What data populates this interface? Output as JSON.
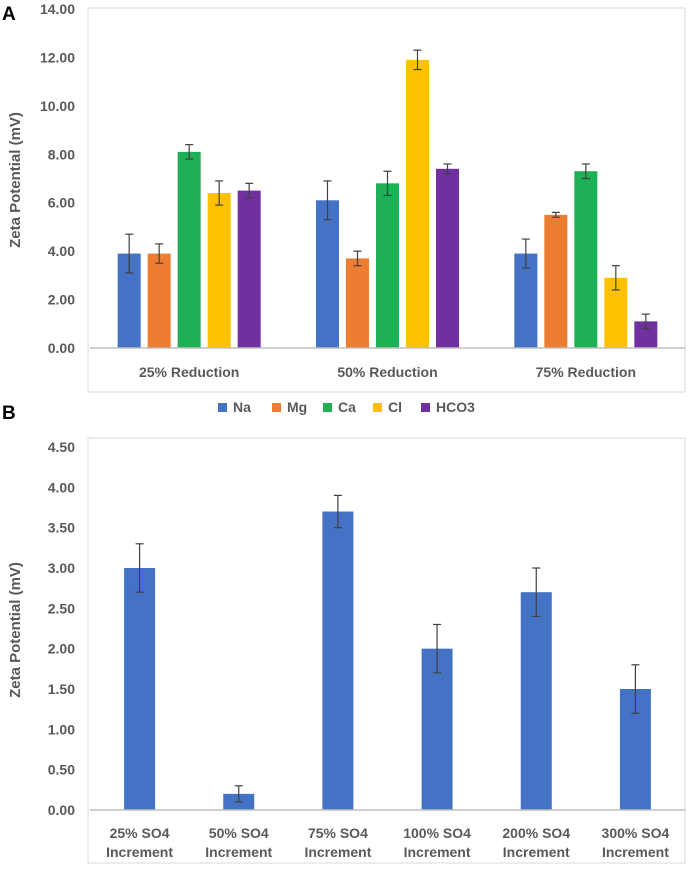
{
  "chart_data": [
    {
      "panel_label": "A",
      "type": "bar",
      "ylabel": "Zeta Potential (mV)",
      "ylim": [
        0,
        14
      ],
      "yticks": [
        "0.00",
        "2.00",
        "4.00",
        "6.00",
        "8.00",
        "10.00",
        "12.00",
        "14.00"
      ],
      "categories": [
        "25% Reduction",
        "50% Reduction",
        "75% Reduction"
      ],
      "series": [
        {
          "name": "Na",
          "color": "#4472c4",
          "values": [
            3.9,
            6.1,
            3.9
          ],
          "errors": [
            0.8,
            0.8,
            0.6
          ]
        },
        {
          "name": "Mg",
          "color": "#ed7d31",
          "values": [
            3.9,
            3.7,
            5.5
          ],
          "errors": [
            0.4,
            0.3,
            0.1
          ]
        },
        {
          "name": "Ca",
          "color": "#1db055",
          "values": [
            8.1,
            6.8,
            7.3
          ],
          "errors": [
            0.3,
            0.5,
            0.3
          ]
        },
        {
          "name": "Cl",
          "color": "#ffc000",
          "values": [
            6.4,
            11.9,
            2.9
          ],
          "errors": [
            0.5,
            0.4,
            0.5
          ]
        },
        {
          "name": "HCO3",
          "color": "#7030a0",
          "values": [
            6.5,
            7.4,
            1.1
          ],
          "errors": [
            0.3,
            0.2,
            0.3
          ]
        }
      ],
      "legend": [
        "Na",
        "Mg",
        "Ca",
        "Cl",
        "HCO3"
      ]
    },
    {
      "panel_label": "B",
      "type": "bar",
      "ylabel": "Zeta Potential (mV)",
      "ylim": [
        0,
        4.5
      ],
      "yticks": [
        "0.00",
        "0.50",
        "1.00",
        "1.50",
        "2.00",
        "2.50",
        "3.00",
        "3.50",
        "4.00",
        "4.50"
      ],
      "categories": [
        [
          "25% SO4",
          "Increment"
        ],
        [
          "50% SO4",
          "Increment"
        ],
        [
          "75% SO4",
          "Increment"
        ],
        [
          "100% SO4",
          "Increment"
        ],
        [
          "200% SO4",
          "Increment"
        ],
        [
          "300% SO4",
          "Increment"
        ]
      ],
      "series": [
        {
          "name": "SO4",
          "color": "#4472c4",
          "values": [
            3.0,
            0.2,
            3.7,
            2.0,
            2.7,
            1.5
          ],
          "errors": [
            0.3,
            0.1,
            0.2,
            0.3,
            0.3,
            0.3
          ]
        }
      ]
    }
  ],
  "colors": {
    "axis": "#bfbfbf",
    "text": "#595959",
    "error_bar": "#404040"
  }
}
